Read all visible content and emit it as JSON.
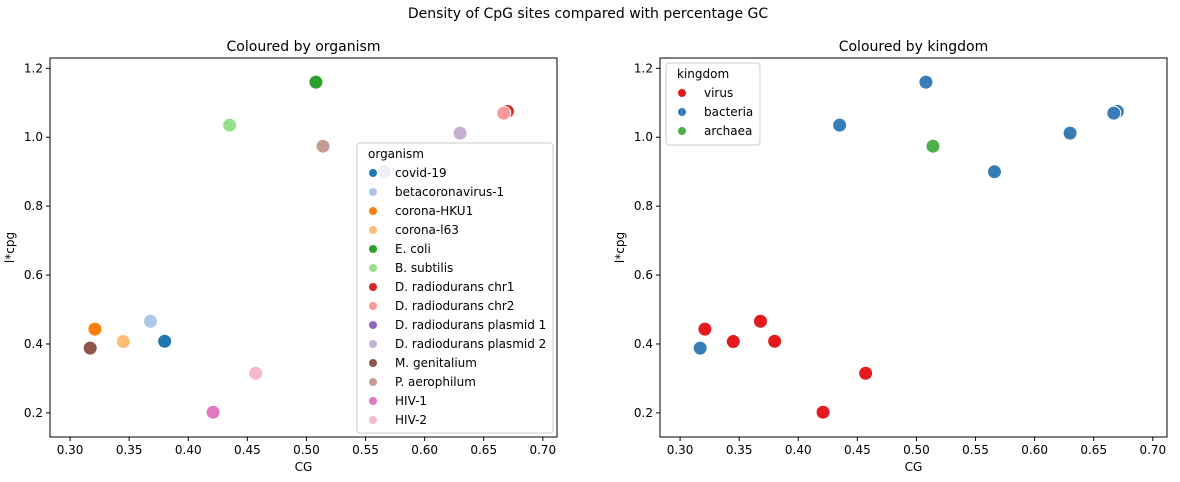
{
  "suptitle": "Density of CpG sites compared with percentage GC",
  "chart_data": [
    {
      "type": "scatter",
      "title": "Coloured by organism",
      "xlabel": "CG",
      "ylabel": "l*cpg",
      "xlim": [
        0.283,
        0.712
      ],
      "ylim": [
        0.13,
        1.23
      ],
      "xticks": [
        "0.30",
        "0.35",
        "0.40",
        "0.45",
        "0.50",
        "0.55",
        "0.60",
        "0.65",
        "0.70"
      ],
      "yticks": [
        "0.2",
        "0.4",
        "0.6",
        "0.8",
        "1.0",
        "1.2"
      ],
      "grid": false,
      "legend_title": "organism",
      "legend_placement": "center-right",
      "series": [
        {
          "name": "covid-19",
          "color": "#1f77b4",
          "points": [
            [
              0.38,
              0.408
            ]
          ]
        },
        {
          "name": "betacoronavirus-1",
          "color": "#aec7e8",
          "points": [
            [
              0.368,
              0.466
            ]
          ]
        },
        {
          "name": "corona-HKU1",
          "color": "#ff7f0e",
          "points": [
            [
              0.321,
              0.443
            ]
          ]
        },
        {
          "name": "corona-l63",
          "color": "#ffbb78",
          "points": [
            [
              0.345,
              0.407
            ]
          ]
        },
        {
          "name": "E. coli",
          "color": "#2ca02c",
          "points": [
            [
              0.508,
              1.16
            ]
          ]
        },
        {
          "name": "B. subtilis",
          "color": "#98df8a",
          "points": [
            [
              0.435,
              1.035
            ]
          ]
        },
        {
          "name": "D. radiodurans chr1",
          "color": "#d62728",
          "points": [
            [
              0.67,
              1.075
            ]
          ]
        },
        {
          "name": "D. radiodurans chr2",
          "color": "#ff9896",
          "points": [
            [
              0.667,
              1.07
            ]
          ]
        },
        {
          "name": "D. radiodurans plasmid 1",
          "color": "#9467bd",
          "points": []
        },
        {
          "name": "D. radiodurans plasmid 2",
          "color": "#c5b0d5",
          "points": [
            [
              0.63,
              1.012
            ],
            [
              0.566,
              0.9
            ]
          ]
        },
        {
          "name": "M. genitalium",
          "color": "#8c564b",
          "points": [
            [
              0.317,
              0.388
            ]
          ]
        },
        {
          "name": "P. aerophilum",
          "color": "#c49c94",
          "points": [
            [
              0.514,
              0.974
            ]
          ]
        },
        {
          "name": "HIV-1",
          "color": "#e377c2",
          "points": [
            [
              0.421,
              0.202
            ]
          ]
        },
        {
          "name": "HIV-2",
          "color": "#f7b6d2",
          "points": [
            [
              0.457,
              0.315
            ]
          ]
        }
      ]
    },
    {
      "type": "scatter",
      "title": "Coloured by kingdom",
      "xlabel": "CG",
      "ylabel": "l*cpg",
      "xlim": [
        0.283,
        0.712
      ],
      "ylim": [
        0.13,
        1.23
      ],
      "xticks": [
        "0.30",
        "0.35",
        "0.40",
        "0.45",
        "0.50",
        "0.55",
        "0.60",
        "0.65",
        "0.70"
      ],
      "yticks": [
        "0.2",
        "0.4",
        "0.6",
        "0.8",
        "1.0",
        "1.2"
      ],
      "grid": false,
      "legend_title": "kingdom",
      "legend_placement": "upper-left",
      "series": [
        {
          "name": "virus",
          "color": "#e41a1c",
          "points": [
            [
              0.38,
              0.408
            ],
            [
              0.368,
              0.466
            ],
            [
              0.321,
              0.443
            ],
            [
              0.345,
              0.407
            ],
            [
              0.421,
              0.202
            ],
            [
              0.457,
              0.315
            ]
          ]
        },
        {
          "name": "bacteria",
          "color": "#377eb8",
          "points": [
            [
              0.508,
              1.16
            ],
            [
              0.435,
              1.035
            ],
            [
              0.67,
              1.075
            ],
            [
              0.667,
              1.07
            ],
            [
              0.63,
              1.012
            ],
            [
              0.566,
              0.9
            ],
            [
              0.317,
              0.388
            ]
          ]
        },
        {
          "name": "archaea",
          "color": "#4daf4a",
          "points": [
            [
              0.514,
              0.974
            ]
          ]
        }
      ]
    }
  ]
}
